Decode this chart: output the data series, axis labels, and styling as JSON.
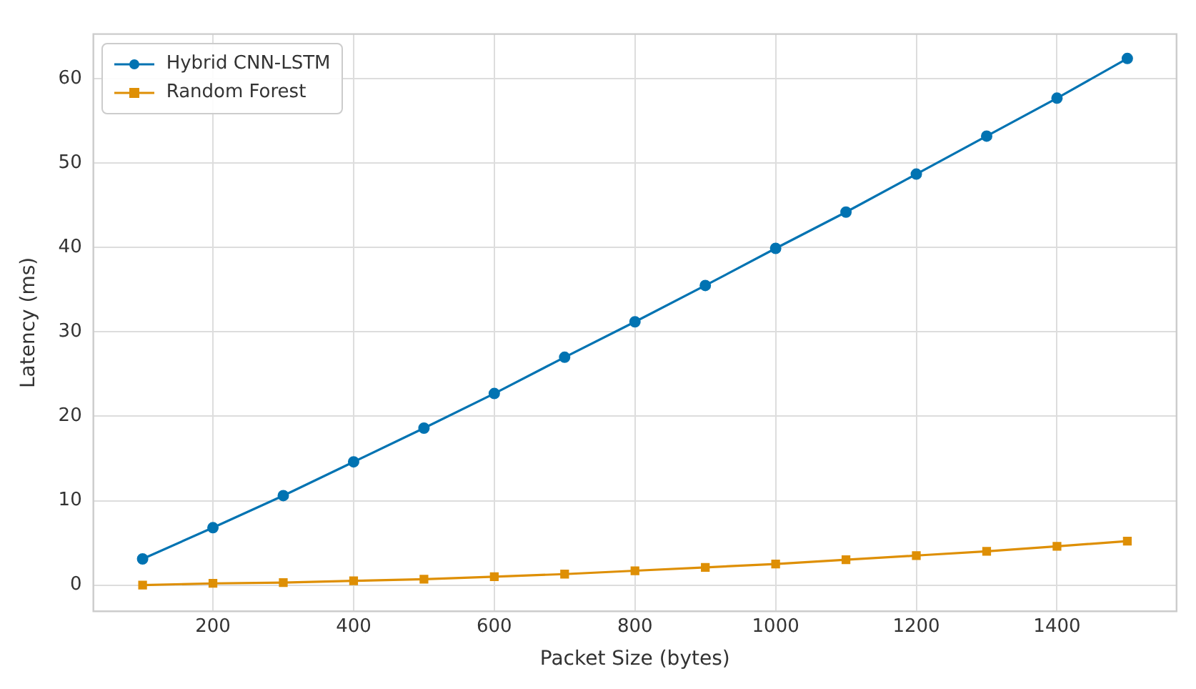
{
  "chart_data": {
    "type": "line",
    "xlabel": "Packet Size (bytes)",
    "ylabel": "Latency (ms)",
    "x": [
      100,
      200,
      300,
      400,
      500,
      600,
      700,
      800,
      900,
      1000,
      1100,
      1200,
      1300,
      1400,
      1500
    ],
    "series": [
      {
        "name": "Hybrid CNN-LSTM",
        "color": "#0173b2",
        "marker": "circle",
        "values": [
          3.1,
          6.8,
          10.6,
          14.6,
          18.6,
          22.7,
          27.0,
          31.2,
          35.5,
          39.9,
          44.2,
          48.7,
          53.2,
          57.7,
          62.4
        ]
      },
      {
        "name": "Random Forest",
        "color": "#de8f05",
        "marker": "square",
        "values": [
          0.0,
          0.2,
          0.3,
          0.5,
          0.7,
          1.0,
          1.3,
          1.7,
          2.1,
          2.5,
          3.0,
          3.5,
          4.0,
          4.6,
          5.2
        ]
      }
    ],
    "xlim": [
      30,
      1570
    ],
    "xticks": [
      200,
      400,
      600,
      800,
      1000,
      1200,
      1400
    ],
    "ylim": [
      -3.1,
      65.3
    ],
    "yticks": [
      0,
      10,
      20,
      30,
      40,
      50,
      60
    ],
    "grid": true,
    "legend": "top left"
  }
}
